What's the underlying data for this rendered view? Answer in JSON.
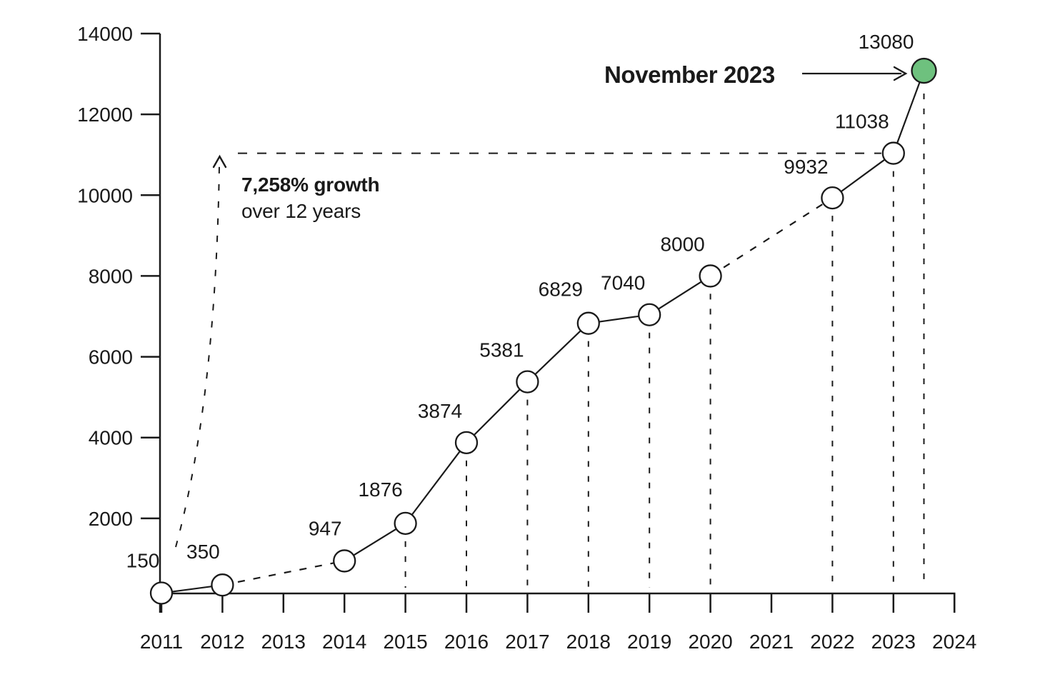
{
  "chart_data": {
    "type": "line",
    "title": "",
    "xlabel": "",
    "ylabel": "",
    "ylim": [
      0,
      14000
    ],
    "grid": false,
    "legend": null,
    "x_ticks": [
      2011,
      2012,
      2013,
      2014,
      2015,
      2016,
      2017,
      2018,
      2019,
      2020,
      2021,
      2022,
      2023,
      2024
    ],
    "y_ticks": [
      2000,
      4000,
      6000,
      8000,
      10000,
      12000,
      14000
    ],
    "points": [
      {
        "x": 2011,
        "value": 150,
        "label": "150"
      },
      {
        "x": 2012,
        "value": 350,
        "label": "350"
      },
      {
        "x": 2014,
        "value": 947,
        "label": "947"
      },
      {
        "x": 2015,
        "value": 1876,
        "label": "1876"
      },
      {
        "x": 2016,
        "value": 3874,
        "label": "3874"
      },
      {
        "x": 2017,
        "value": 5381,
        "label": "5381"
      },
      {
        "x": 2018,
        "value": 6829,
        "label": "6829"
      },
      {
        "x": 2019,
        "value": 7040,
        "label": "7040"
      },
      {
        "x": 2020,
        "value": 8000,
        "label": "8000"
      },
      {
        "x": 2022,
        "value": 9932,
        "label": "9932"
      },
      {
        "x": 2023,
        "value": 11038,
        "label": "11038"
      },
      {
        "x": 2023.5,
        "value": 13080,
        "label": "13080",
        "highlight": true
      }
    ],
    "reference_line_value": 11038,
    "annotations": {
      "growth_bold": "7,258% growth",
      "growth_sub": "over 12 years",
      "callout": "November 2023"
    },
    "colors": {
      "line": "#1a1a1a",
      "axis": "#1a1a1a",
      "text": "#1a1a1a",
      "point_fill": "#ffffff",
      "highlight_fill": "#6ec17e"
    }
  }
}
